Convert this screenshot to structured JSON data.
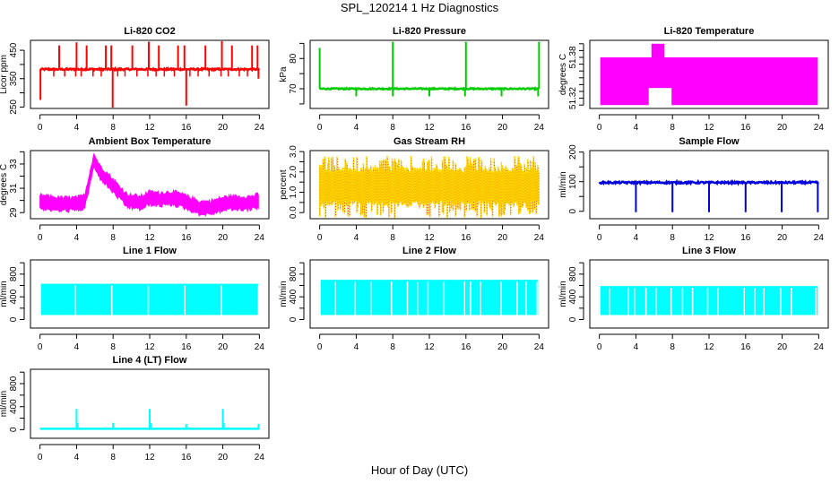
{
  "figure": {
    "title": "SPL_120214  1 Hz Diagnostics",
    "xlabel": "Hour of Day (UTC)"
  },
  "chart_data": [
    {
      "type": "line",
      "id": "co2",
      "title": "Li-820 CO2",
      "ylabel": "Licor ppm",
      "color": "#ff0000",
      "xlim": [
        0,
        24
      ],
      "ylim": [
        245,
        485
      ],
      "xticks": [
        0,
        4,
        8,
        12,
        16,
        20,
        24
      ],
      "yticks": [
        250,
        300,
        350,
        400,
        450
      ],
      "ytick_labels": [
        "250",
        "",
        "350",
        "",
        "450"
      ],
      "baseline": 383,
      "noise": 3,
      "spikes_up": [
        [
          2.1,
          467
        ],
        [
          4.0,
          478
        ],
        [
          5.1,
          467
        ],
        [
          7.2,
          467
        ],
        [
          7.8,
          467
        ],
        [
          10.1,
          467
        ],
        [
          11.9,
          480
        ],
        [
          13.0,
          467
        ],
        [
          15.1,
          467
        ],
        [
          15.8,
          467
        ],
        [
          18.1,
          467
        ],
        [
          19.9,
          482
        ],
        [
          21.0,
          467
        ],
        [
          23.2,
          467
        ],
        [
          23.8,
          467
        ]
      ],
      "spikes_down": [
        [
          0.05,
          275
        ],
        [
          7.95,
          248
        ],
        [
          16.0,
          255
        ],
        [
          23.9,
          350
        ]
      ],
      "dips": [
        1.5,
        2.7,
        3.9,
        4.5,
        5.8,
        6.7,
        8.5,
        9.3,
        10.6,
        11.8,
        12.7,
        13.6,
        14.7,
        16.4,
        17.3,
        18.5,
        19.8,
        20.6,
        21.8,
        22.7
      ]
    },
    {
      "type": "line",
      "id": "pressure",
      "title": "Li-820 Pressure",
      "ylabel": "kPa",
      "color": "#00cc00",
      "xlim": [
        0,
        24
      ],
      "ylim": [
        63.5,
        86
      ],
      "xticks": [
        0,
        4,
        8,
        12,
        16,
        20,
        24
      ],
      "yticks": [
        65,
        70,
        75,
        80,
        85
      ],
      "ytick_labels": [
        "",
        "70",
        "",
        "80",
        ""
      ],
      "baseline": 70,
      "noise": 0.2,
      "spikes_up": [
        [
          0.0,
          83.5
        ],
        [
          8.0,
          85.5
        ],
        [
          16.0,
          85.5
        ],
        [
          24.0,
          85.5
        ]
      ],
      "spikes_down": [
        [
          4.0,
          67.5
        ],
        [
          8.0,
          67.5
        ],
        [
          12.0,
          67.5
        ],
        [
          15.9,
          67.5
        ],
        [
          19.9,
          67.5
        ],
        [
          23.9,
          67.5
        ]
      ],
      "dips": []
    },
    {
      "type": "band",
      "id": "licor-temp",
      "title": "Li-820 Temperature",
      "ylabel": "degrees C",
      "color": "#ff00ff",
      "xlim": [
        0,
        24
      ],
      "ylim": [
        51.305,
        51.405
      ],
      "xticks": [
        0,
        4,
        8,
        12,
        16,
        20,
        24
      ],
      "yticks": [
        51.31,
        51.32,
        51.33,
        51.34,
        51.35,
        51.36,
        51.37,
        51.38,
        51.39,
        51.4
      ],
      "ytick_labels": [
        "",
        "51.32",
        "",
        "",
        "",
        "",
        "",
        "51.38",
        "",
        ""
      ],
      "band_low": 51.31,
      "band_high": 51.38,
      "hole": [
        5.4,
        7.9,
        51.31,
        51.335
      ],
      "bump": [
        5.7,
        7.1,
        51.4
      ]
    },
    {
      "type": "band",
      "id": "ambient-temp",
      "title": "Ambient Box Temperature",
      "ylabel": "degrees C",
      "color": "#ff00ff",
      "xlim": [
        0,
        24
      ],
      "ylim": [
        28.5,
        34.1
      ],
      "xticks": [
        0,
        4,
        8,
        12,
        16,
        20,
        24
      ],
      "yticks": [
        29,
        30,
        31,
        32,
        33,
        34
      ],
      "ytick_labels": [
        "29",
        "",
        "31",
        "",
        "33",
        ""
      ],
      "profile": [
        [
          0,
          29.9
        ],
        [
          1,
          29.8
        ],
        [
          2,
          29.7
        ],
        [
          3,
          29.7
        ],
        [
          4,
          29.7
        ],
        [
          4.9,
          29.9
        ],
        [
          5.5,
          32.0
        ],
        [
          5.9,
          33.3
        ],
        [
          6.5,
          32.4
        ],
        [
          7.5,
          31.6
        ],
        [
          8.5,
          30.8
        ],
        [
          9.5,
          30.0
        ],
        [
          11,
          29.8
        ],
        [
          12,
          30.2
        ],
        [
          13,
          30.1
        ],
        [
          14.5,
          30.2
        ],
        [
          15.5,
          30.0
        ],
        [
          16.5,
          29.7
        ],
        [
          17.5,
          29.4
        ],
        [
          18.5,
          29.4
        ],
        [
          19.5,
          29.6
        ],
        [
          20.5,
          29.8
        ],
        [
          21.5,
          29.8
        ],
        [
          23,
          29.8
        ],
        [
          24,
          30.0
        ]
      ],
      "halfwidth": 0.45
    },
    {
      "type": "band",
      "id": "rh",
      "title": "Gas Stream RH",
      "ylabel": "percent",
      "color": "#ffd700",
      "color2": "#dd2200",
      "xlim": [
        0,
        24
      ],
      "ylim": [
        -0.3,
        3.05
      ],
      "xticks": [
        0,
        4,
        8,
        12,
        16,
        20,
        24
      ],
      "yticks": [
        0.0,
        0.5,
        1.0,
        1.5,
        2.0,
        2.5,
        3.0
      ],
      "ytick_labels": [
        "0.0",
        "",
        "1.0",
        "",
        "2.0",
        "",
        "3.0"
      ],
      "band_low": 0.6,
      "band_high": 2.0,
      "spike_low": -0.3,
      "spike_high": 2.8
    },
    {
      "type": "line",
      "id": "sample-flow",
      "title": "Sample Flow",
      "ylabel": "ml/min",
      "color": "#0000dd",
      "xlim": [
        0,
        24
      ],
      "ylim": [
        -25,
        205
      ],
      "xticks": [
        0,
        4,
        8,
        12,
        16,
        20,
        24
      ],
      "yticks": [
        0,
        50,
        100,
        150,
        200
      ],
      "ytick_labels": [
        "0",
        "",
        "100",
        "",
        "200"
      ],
      "baseline": 97,
      "noise": 3,
      "spikes_up": [],
      "spikes_down": [
        [
          4.0,
          -3
        ],
        [
          8.0,
          -3
        ],
        [
          12.0,
          -3
        ],
        [
          16.0,
          -3
        ],
        [
          19.95,
          -3
        ],
        [
          23.9,
          -3
        ]
      ],
      "dips": []
    },
    {
      "type": "band",
      "id": "line1-flow",
      "title": "Line 1 Flow",
      "ylabel": "ml/min",
      "color": "#00ffff",
      "xlim": [
        0,
        24
      ],
      "ylim": [
        -150,
        1050
      ],
      "xticks": [
        0,
        4,
        8,
        12,
        16,
        20,
        24
      ],
      "yticks": [
        0,
        200,
        400,
        600,
        800,
        1000
      ],
      "ytick_labels": [
        "0",
        "",
        "400",
        "",
        "800",
        ""
      ],
      "band_low": 80,
      "band_high": 630,
      "gaps": [
        3.85,
        7.85,
        11.85,
        15.85,
        19.85,
        23.9
      ]
    },
    {
      "type": "band",
      "id": "line2-flow",
      "title": "Line 2 Flow",
      "ylabel": "ml/min",
      "color": "#00ffff",
      "xlim": [
        0,
        24
      ],
      "ylim": [
        -150,
        1050
      ],
      "xticks": [
        0,
        4,
        8,
        12,
        16,
        20,
        24
      ],
      "yticks": [
        0,
        200,
        400,
        600,
        800,
        1000
      ],
      "ytick_labels": [
        "0",
        "",
        "400",
        "",
        "800",
        ""
      ],
      "band_low": 80,
      "band_high": 700,
      "gaps": [
        1.7,
        3.85,
        5.6,
        7.85,
        9.6,
        10.7,
        11.85,
        13.6,
        15.85,
        16.5,
        17.6,
        19.85,
        21.6,
        22.6,
        23.8
      ]
    },
    {
      "type": "band",
      "id": "line3-flow",
      "title": "Line 3 Flow",
      "ylabel": "ml/min",
      "color": "#00ffff",
      "xlim": [
        0,
        24
      ],
      "ylim": [
        -150,
        1050
      ],
      "xticks": [
        0,
        4,
        8,
        12,
        16,
        20,
        24
      ],
      "yticks": [
        0,
        200,
        400,
        600,
        800,
        1000
      ],
      "ytick_labels": [
        "0",
        "",
        "400",
        "",
        "800",
        ""
      ],
      "band_low": 80,
      "band_high": 590,
      "gaps": [
        1.1,
        3.2,
        3.85,
        5.1,
        6.2,
        7.85,
        9.1,
        10.2,
        11.85,
        13.0,
        15.85,
        17.0,
        18.0,
        19.85,
        21.0,
        23.7
      ]
    },
    {
      "type": "line",
      "id": "line4-flow",
      "title": "Line 4 (LT) Flow",
      "ylabel": "ml/min",
      "color": "#00ffff",
      "xlim": [
        0,
        24
      ],
      "ylim": [
        -150,
        1050
      ],
      "xticks": [
        0,
        4,
        8,
        12,
        16,
        20,
        24
      ],
      "yticks": [
        0,
        200,
        400,
        600,
        800,
        1000
      ],
      "ytick_labels": [
        "0",
        "",
        "400",
        "",
        "800",
        ""
      ],
      "baseline": 15,
      "noise": 0,
      "spikes_up": [
        [
          4.0,
          360
        ],
        [
          4.1,
          120
        ],
        [
          8.0,
          120
        ],
        [
          12.0,
          360
        ],
        [
          12.1,
          120
        ],
        [
          16.0,
          100
        ],
        [
          20.0,
          360
        ],
        [
          20.1,
          120
        ],
        [
          23.9,
          100
        ]
      ],
      "spikes_down": [],
      "dips": []
    }
  ]
}
